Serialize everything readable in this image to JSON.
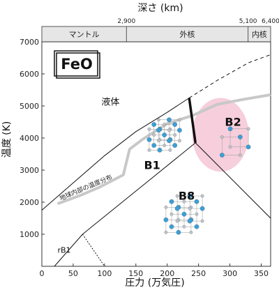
{
  "chart_data": {
    "type": "line",
    "title": "FeO",
    "xlabel": "圧力 (万気圧)",
    "ylabel": "温度 (K)",
    "top_axis_label": "深さ (km)",
    "xlim": [
      0,
      365
    ],
    "ylim": [
      0,
      7000
    ],
    "x_ticks": [
      0,
      50,
      100,
      150,
      200,
      250,
      300,
      350
    ],
    "y_ticks": [
      1000,
      2000,
      3000,
      4000,
      5000,
      6000,
      7000
    ],
    "top_ticks": [
      {
        "label": "2,900",
        "x": 135
      },
      {
        "label": "5,100",
        "x": 329
      },
      {
        "label": "6,400",
        "x": 365
      }
    ],
    "regions": [
      {
        "label": "マントル",
        "x_start": 0,
        "x_end": 135
      },
      {
        "label": "外核",
        "x_start": 135,
        "x_end": 329
      },
      {
        "label": "内核",
        "x_start": 329,
        "x_end": 365
      }
    ],
    "phase_labels": {
      "liquid": "液体",
      "b1": "B1",
      "b2": "B2",
      "b8": "B8",
      "rb1": "rB1"
    },
    "geotherm_label": "地球内部の温度分布",
    "boundaries": {
      "melting_curve": [
        [
          0,
          1750
        ],
        [
          50,
          2600
        ],
        [
          100,
          3450
        ],
        [
          150,
          4200
        ],
        [
          200,
          4800
        ],
        [
          235,
          5250
        ]
      ],
      "melting_curve_extrapolated": [
        [
          235,
          5250
        ],
        [
          280,
          5800
        ],
        [
          330,
          6350
        ],
        [
          365,
          6600
        ]
      ],
      "b1_b2_melting": [
        [
          235,
          5250
        ],
        [
          245,
          3850
        ]
      ],
      "b1_b8_boundary": [
        [
          65,
          1000
        ],
        [
          245,
          3850
        ]
      ],
      "b8_b2_boundary": [
        [
          245,
          3850
        ],
        [
          365,
          1500
        ]
      ],
      "b2_liquid_right": [
        [
          245,
          3850
        ],
        [
          365,
          2800
        ]
      ],
      "lower_solidus": [
        [
          20,
          0
        ],
        [
          65,
          1000
        ]
      ],
      "rb1_dotted_left": [
        [
          20,
          0
        ],
        [
          65,
          1000
        ]
      ],
      "rb1_dotted_right": [
        [
          65,
          1000
        ],
        [
          100,
          0
        ]
      ]
    },
    "geotherm": [
      [
        25,
        1950
      ],
      [
        60,
        2200
      ],
      [
        90,
        2450
      ],
      [
        130,
        2850
      ],
      [
        140,
        3650
      ],
      [
        160,
        3950
      ],
      [
        200,
        4450
      ],
      [
        240,
        4700
      ],
      [
        280,
        5050
      ],
      [
        320,
        5200
      ],
      [
        365,
        5350
      ]
    ],
    "highlight_ellipse": {
      "center": [
        285,
        4100
      ],
      "rx": 45,
      "ry": 2300,
      "color": "#f4c6d6"
    },
    "colors": {
      "curve": "#111111",
      "geotherm": "#c8c8c8",
      "axis_band": "#e6e6e6",
      "crystal": "#3aa0d8"
    }
  }
}
